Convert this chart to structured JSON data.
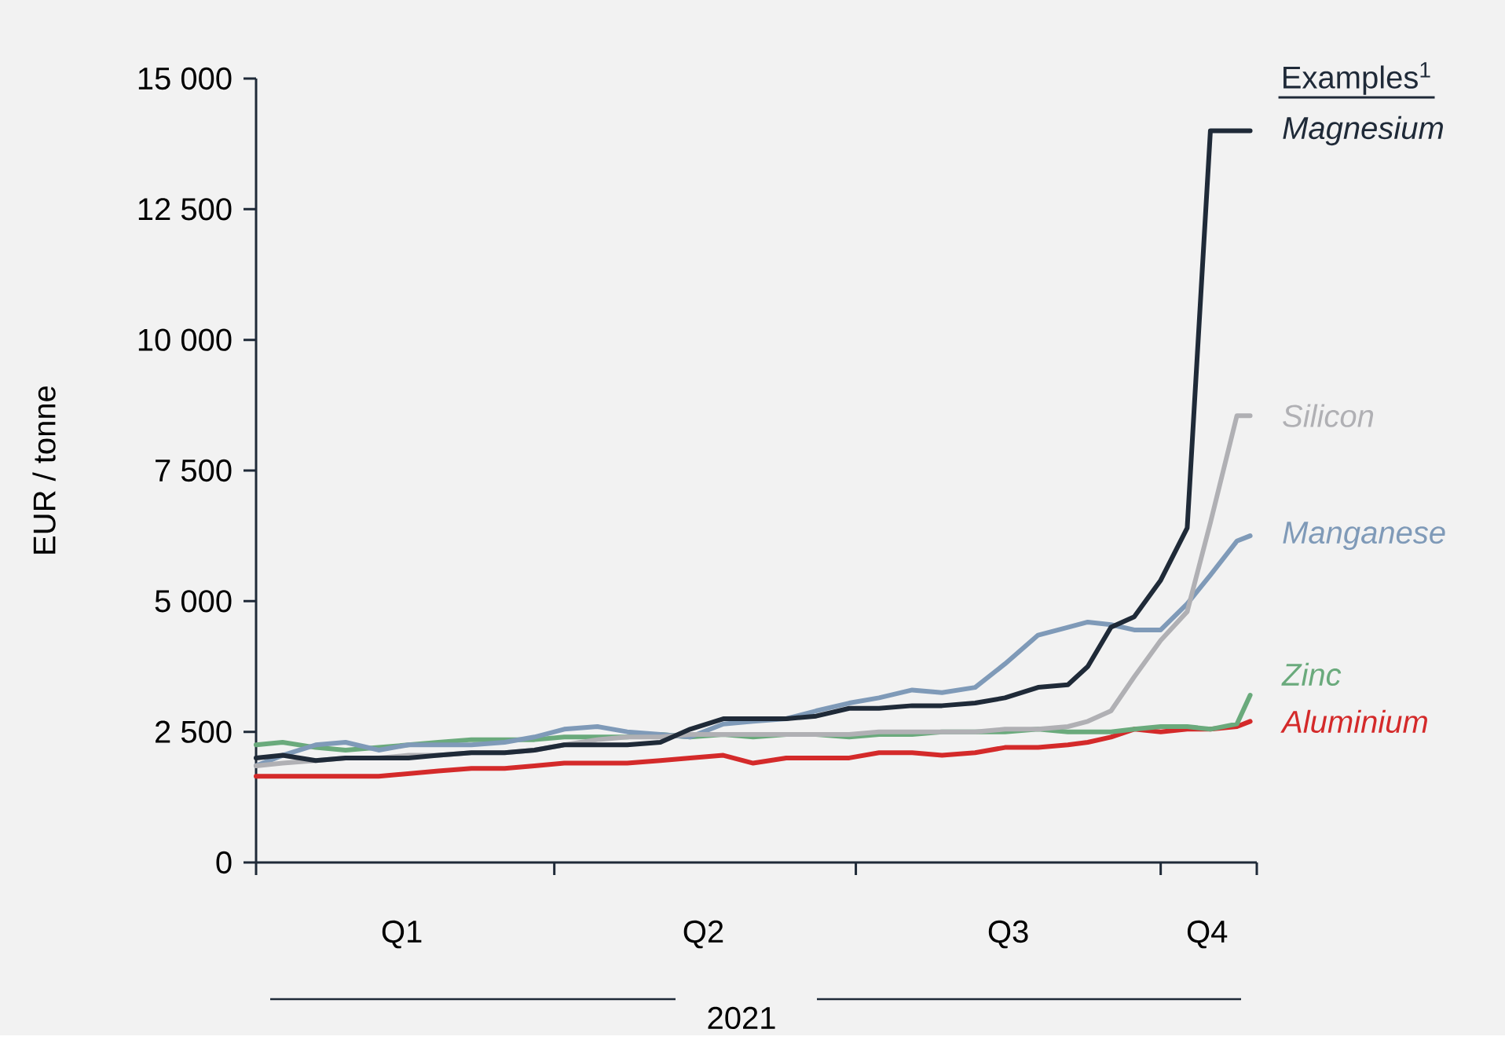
{
  "chart_data": {
    "type": "line",
    "ylabel": "EUR / tonne",
    "xlabel": "2021",
    "legend_title": "Examples$^{1}$",
    "legend": "right",
    "marker": "none",
    "line_style": "solid",
    "xlim": [
      "2021-01-01",
      "2021-10-30"
    ],
    "xticks": [
      {
        "value": "2021-01-01",
        "label": null
      },
      {
        "value": "2021-04-01",
        "label": null
      },
      {
        "value": "2021-07-01",
        "label": null
      },
      {
        "value": "2021-10-01",
        "label": null
      },
      {
        "value": "2021-10-30",
        "label": null
      },
      {
        "value": "2021-02-14",
        "label": "Q1"
      },
      {
        "value": "2021-05-16",
        "label": "Q2"
      },
      {
        "value": "2021-08-16",
        "label": "Q3"
      },
      {
        "value": "2021-10-15",
        "label": "Q4"
      }
    ],
    "ylim": [
      0,
      15000
    ],
    "yticks": [
      {
        "value": 0,
        "label": "0"
      },
      {
        "value": 2500,
        "label": "2 500"
      },
      {
        "value": 5000,
        "label": "5 000"
      },
      {
        "value": 7500,
        "label": "7 500"
      },
      {
        "value": 10000,
        "label": "10 000"
      },
      {
        "value": 12500,
        "label": "12 500"
      },
      {
        "value": 15000,
        "label": "15 000"
      }
    ],
    "x": [
      "2021-01-01",
      "2021-01-09",
      "2021-01-19",
      "2021-01-28",
      "2021-02-07",
      "2021-02-16",
      "2021-02-25",
      "2021-03-07",
      "2021-03-17",
      "2021-03-26",
      "2021-04-04",
      "2021-04-14",
      "2021-04-23",
      "2021-05-03",
      "2021-05-12",
      "2021-05-22",
      "2021-05-31",
      "2021-06-10",
      "2021-06-19",
      "2021-06-29",
      "2021-07-08",
      "2021-07-18",
      "2021-07-27",
      "2021-08-06",
      "2021-08-15",
      "2021-08-25",
      "2021-09-03",
      "2021-09-09",
      "2021-09-16",
      "2021-09-23",
      "2021-10-01",
      "2021-10-09",
      "2021-10-16",
      "2021-10-24",
      "2021-10-28"
    ],
    "series": [
      {
        "name": "Magnesium",
        "color": "#1f2a38",
        "values": [
          2000,
          2050,
          1950,
          2000,
          2000,
          2000,
          2050,
          2100,
          2100,
          2150,
          2250,
          2250,
          2250,
          2300,
          2550,
          2750,
          2750,
          2750,
          2800,
          2950,
          2950,
          3000,
          3000,
          3050,
          3150,
          3350,
          3400,
          3750,
          4500,
          4700,
          5400,
          6400,
          14000,
          14000,
          14000
        ]
      },
      {
        "name": "Silicon",
        "color": "#b0b0b4",
        "values": [
          1850,
          1900,
          1950,
          2000,
          2000,
          2050,
          2050,
          2100,
          2100,
          2150,
          2250,
          2350,
          2400,
          2400,
          2450,
          2450,
          2450,
          2450,
          2450,
          2450,
          2500,
          2500,
          2500,
          2500,
          2550,
          2550,
          2600,
          2700,
          2900,
          3550,
          4250,
          4800,
          6500,
          8550,
          8550
        ]
      },
      {
        "name": "Manganese",
        "color": "#7f9ab8",
        "values": [
          1850,
          2050,
          2250,
          2300,
          2150,
          2250,
          2250,
          2250,
          2300,
          2400,
          2550,
          2600,
          2500,
          2450,
          2400,
          2650,
          2700,
          2750,
          2900,
          3050,
          3150,
          3300,
          3250,
          3350,
          3800,
          4350,
          4500,
          4600,
          4550,
          4450,
          4450,
          4950,
          5500,
          6150,
          6250
        ]
      },
      {
        "name": "Zinc",
        "color": "#6aaa7c",
        "values": [
          2250,
          2300,
          2200,
          2150,
          2200,
          2250,
          2300,
          2350,
          2350,
          2350,
          2400,
          2400,
          2400,
          2450,
          2400,
          2450,
          2400,
          2450,
          2450,
          2400,
          2450,
          2450,
          2500,
          2500,
          2500,
          2550,
          2500,
          2500,
          2500,
          2550,
          2600,
          2600,
          2550,
          2650,
          3200
        ]
      },
      {
        "name": "Aluminium",
        "color": "#d42a2a",
        "values": [
          1650,
          1650,
          1650,
          1650,
          1650,
          1700,
          1750,
          1800,
          1800,
          1850,
          1900,
          1900,
          1900,
          1950,
          2000,
          2050,
          1900,
          2000,
          2000,
          2000,
          2100,
          2100,
          2050,
          2100,
          2200,
          2200,
          2250,
          2300,
          2400,
          2550,
          2500,
          2550,
          2550,
          2600,
          2700
        ]
      }
    ]
  }
}
